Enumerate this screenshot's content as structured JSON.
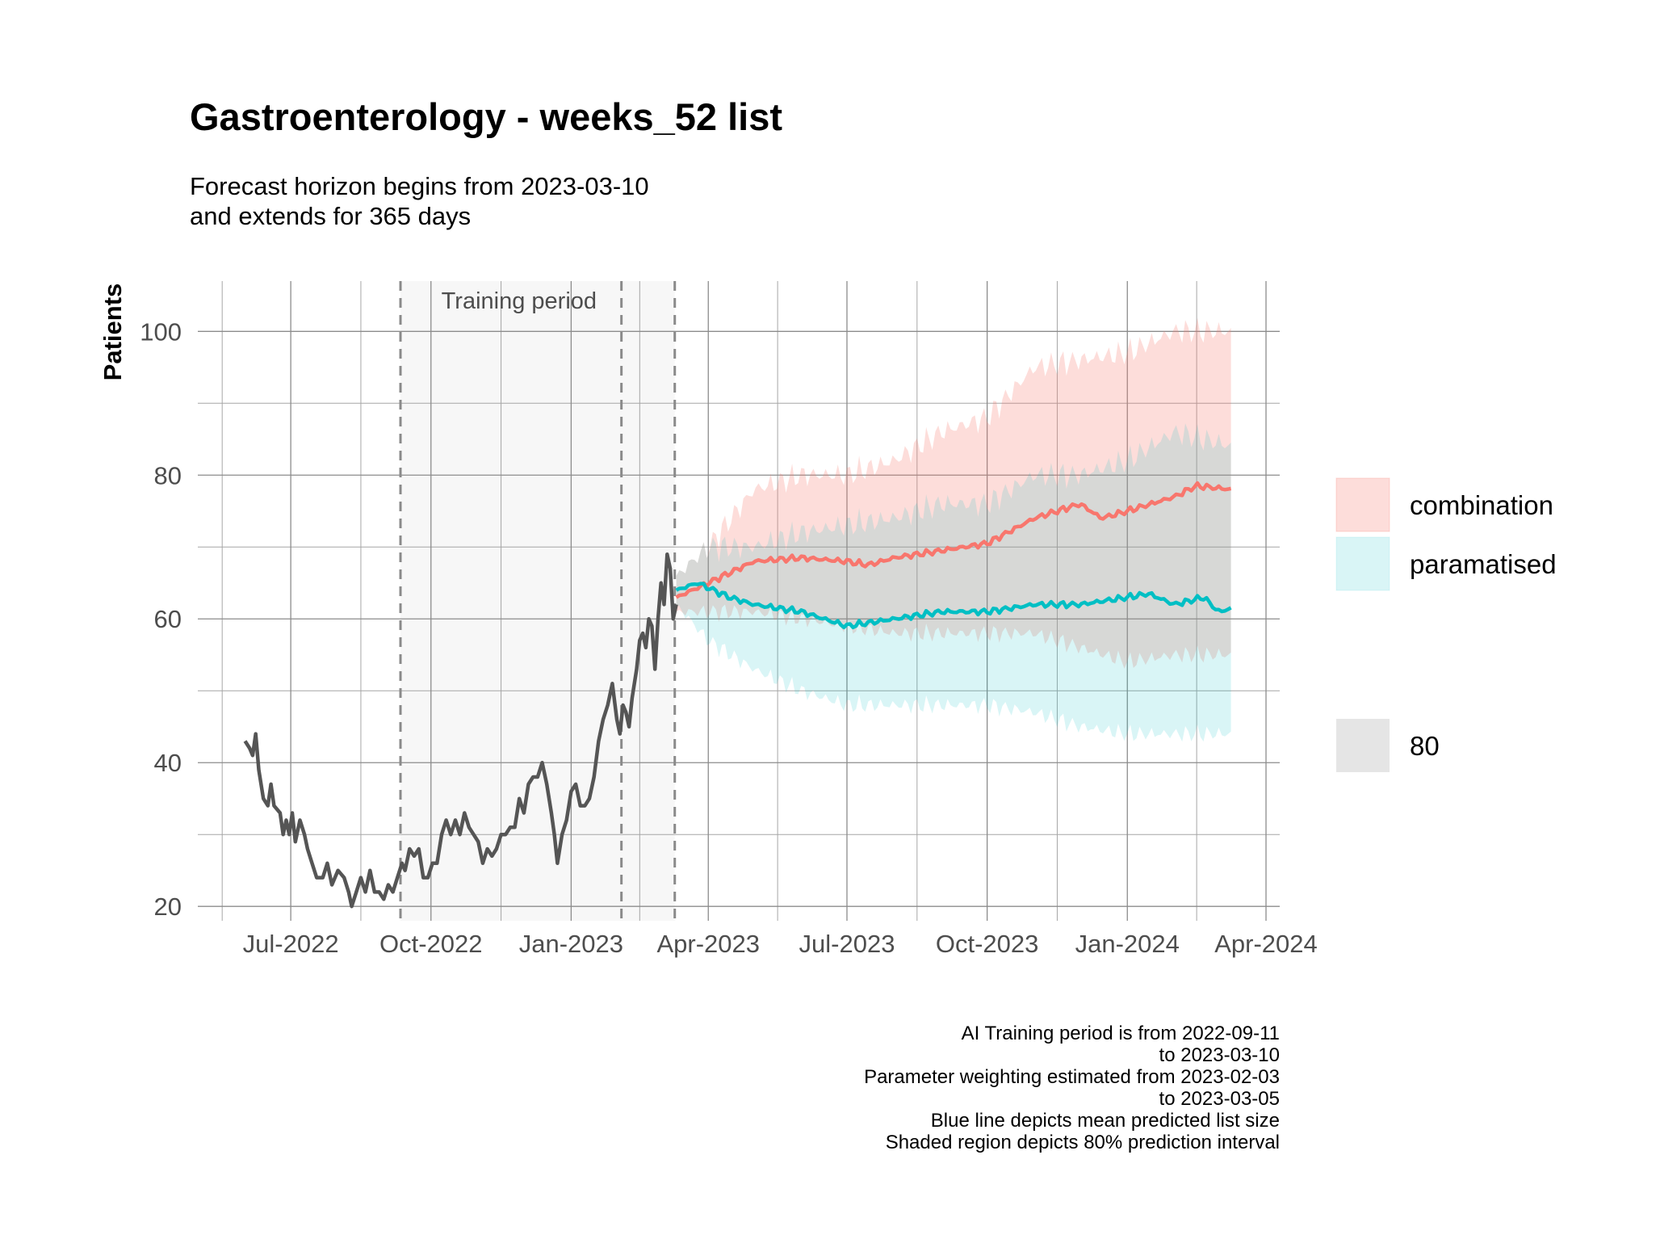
{
  "chart_data": {
    "type": "line",
    "title": "Gastroenterology - weeks_52 list",
    "subtitle_lines": [
      "Forecast horizon begins from 2023-03-10",
      "and extends for 365 days"
    ],
    "ylabel": "Patients",
    "xlabel": "",
    "ylim": [
      18,
      107
    ],
    "y_ticks": [
      20,
      40,
      60,
      80,
      100
    ],
    "x_ticks": [
      {
        "date": "2022-07-01",
        "label": "Jul-2022"
      },
      {
        "date": "2022-10-01",
        "label": "Oct-2022"
      },
      {
        "date": "2023-01-01",
        "label": "Jan-2023"
      },
      {
        "date": "2023-04-01",
        "label": "Apr-2023"
      },
      {
        "date": "2023-07-01",
        "label": "Jul-2023"
      },
      {
        "date": "2023-10-01",
        "label": "Oct-2023"
      },
      {
        "date": "2024-01-01",
        "label": "Jan-2024"
      },
      {
        "date": "2024-04-01",
        "label": "Apr-2024"
      }
    ],
    "xlim": [
      "2022-05-01",
      "2024-04-10"
    ],
    "grid": true,
    "training_period": {
      "start": "2022-09-11",
      "end": "2023-03-10",
      "label": "Training period"
    },
    "vlines_dashed": [
      "2022-09-11",
      "2023-02-03",
      "2023-03-10"
    ],
    "legend": {
      "position": "right",
      "entries": [
        {
          "label": "combination",
          "color": "#f8766d"
        },
        {
          "label": "paramatised",
          "color": "#00bfc4"
        }
      ],
      "level_label": "80",
      "level_color": "#e0e0e0"
    },
    "series": [
      {
        "style": "observed",
        "color": "#555555",
        "points": [
          [
            "2022-06-01",
            43
          ],
          [
            "2022-06-04",
            42
          ],
          [
            "2022-06-06",
            41
          ],
          [
            "2022-06-08",
            44
          ],
          [
            "2022-06-10",
            39
          ],
          [
            "2022-06-13",
            35
          ],
          [
            "2022-06-16",
            34
          ],
          [
            "2022-06-18",
            37
          ],
          [
            "2022-06-20",
            34
          ],
          [
            "2022-06-24",
            33
          ],
          [
            "2022-06-26",
            30
          ],
          [
            "2022-06-28",
            32
          ],
          [
            "2022-06-30",
            30
          ],
          [
            "2022-07-02",
            33
          ],
          [
            "2022-07-04",
            29
          ],
          [
            "2022-07-07",
            32
          ],
          [
            "2022-07-10",
            30
          ],
          [
            "2022-07-12",
            28
          ],
          [
            "2022-07-15",
            26
          ],
          [
            "2022-07-18",
            24
          ],
          [
            "2022-07-22",
            24
          ],
          [
            "2022-07-25",
            26
          ],
          [
            "2022-07-28",
            23
          ],
          [
            "2022-08-01",
            25
          ],
          [
            "2022-08-05",
            24
          ],
          [
            "2022-08-08",
            22
          ],
          [
            "2022-08-10",
            20
          ],
          [
            "2022-08-13",
            22
          ],
          [
            "2022-08-16",
            24
          ],
          [
            "2022-08-19",
            22
          ],
          [
            "2022-08-22",
            25
          ],
          [
            "2022-08-25",
            22
          ],
          [
            "2022-08-28",
            22
          ],
          [
            "2022-08-31",
            21
          ],
          [
            "2022-09-03",
            23
          ],
          [
            "2022-09-06",
            22
          ],
          [
            "2022-09-09",
            24
          ],
          [
            "2022-09-12",
            26
          ],
          [
            "2022-09-14",
            25
          ],
          [
            "2022-09-17",
            28
          ],
          [
            "2022-09-20",
            27
          ],
          [
            "2022-09-23",
            28
          ],
          [
            "2022-09-26",
            24
          ],
          [
            "2022-09-29",
            24
          ],
          [
            "2022-10-02",
            26
          ],
          [
            "2022-10-05",
            26
          ],
          [
            "2022-10-08",
            30
          ],
          [
            "2022-10-11",
            32
          ],
          [
            "2022-10-14",
            30
          ],
          [
            "2022-10-17",
            32
          ],
          [
            "2022-10-20",
            30
          ],
          [
            "2022-10-23",
            33
          ],
          [
            "2022-10-26",
            31
          ],
          [
            "2022-10-29",
            30
          ],
          [
            "2022-11-01",
            29
          ],
          [
            "2022-11-04",
            26
          ],
          [
            "2022-11-07",
            28
          ],
          [
            "2022-11-10",
            27
          ],
          [
            "2022-11-13",
            28
          ],
          [
            "2022-11-16",
            30
          ],
          [
            "2022-11-19",
            30
          ],
          [
            "2022-11-22",
            31
          ],
          [
            "2022-11-25",
            31
          ],
          [
            "2022-11-28",
            35
          ],
          [
            "2022-12-01",
            33
          ],
          [
            "2022-12-04",
            37
          ],
          [
            "2022-12-07",
            38
          ],
          [
            "2022-12-10",
            38
          ],
          [
            "2022-12-13",
            40
          ],
          [
            "2022-12-16",
            37
          ],
          [
            "2022-12-19",
            33
          ],
          [
            "2022-12-21",
            30
          ],
          [
            "2022-12-23",
            26
          ],
          [
            "2022-12-26",
            30
          ],
          [
            "2022-12-29",
            32
          ],
          [
            "2023-01-01",
            36
          ],
          [
            "2023-01-04",
            37
          ],
          [
            "2023-01-07",
            34
          ],
          [
            "2023-01-10",
            34
          ],
          [
            "2023-01-13",
            35
          ],
          [
            "2023-01-16",
            38
          ],
          [
            "2023-01-19",
            43
          ],
          [
            "2023-01-22",
            46
          ],
          [
            "2023-01-25",
            48
          ],
          [
            "2023-01-28",
            51
          ],
          [
            "2023-01-31",
            46
          ],
          [
            "2023-02-02",
            44
          ],
          [
            "2023-02-04",
            48
          ],
          [
            "2023-02-06",
            47
          ],
          [
            "2023-02-08",
            45
          ],
          [
            "2023-02-10",
            49
          ],
          [
            "2023-02-13",
            53
          ],
          [
            "2023-02-15",
            57
          ],
          [
            "2023-02-17",
            58
          ],
          [
            "2023-02-19",
            56
          ],
          [
            "2023-02-21",
            60
          ],
          [
            "2023-02-23",
            59
          ],
          [
            "2023-02-25",
            53
          ],
          [
            "2023-02-27",
            60
          ],
          [
            "2023-03-01",
            65
          ],
          [
            "2023-03-03",
            62
          ],
          [
            "2023-03-05",
            69
          ],
          [
            "2023-03-07",
            67
          ],
          [
            "2023-03-09",
            60
          ],
          [
            "2023-03-11",
            62
          ]
        ]
      },
      {
        "name": "combination",
        "color": "#f8766d",
        "mean": [
          [
            "2023-03-11",
            63
          ],
          [
            "2023-04-01",
            65
          ],
          [
            "2023-05-01",
            68
          ],
          [
            "2023-06-01",
            68.5
          ],
          [
            "2023-07-01",
            68
          ],
          [
            "2023-07-15",
            67.5
          ],
          [
            "2023-08-01",
            68.5
          ],
          [
            "2023-09-01",
            69.5
          ],
          [
            "2023-10-01",
            70.5
          ],
          [
            "2023-11-01",
            74
          ],
          [
            "2023-12-01",
            76
          ],
          [
            "2023-12-15",
            74
          ],
          [
            "2024-01-01",
            75
          ],
          [
            "2024-02-01",
            77
          ],
          [
            "2024-02-15",
            78.5
          ],
          [
            "2024-03-10",
            78
          ]
        ],
        "band_upper": [
          [
            "2023-03-11",
            66
          ],
          [
            "2023-04-01",
            70
          ],
          [
            "2023-05-01",
            78
          ],
          [
            "2023-06-01",
            80
          ],
          [
            "2023-07-01",
            80
          ],
          [
            "2023-08-01",
            82
          ],
          [
            "2023-09-01",
            86
          ],
          [
            "2023-10-01",
            88
          ],
          [
            "2023-11-01",
            95
          ],
          [
            "2023-12-01",
            96
          ],
          [
            "2024-01-01",
            97
          ],
          [
            "2024-02-01",
            100
          ],
          [
            "2024-03-10",
            100
          ]
        ],
        "band_lower": [
          [
            "2023-03-11",
            61
          ],
          [
            "2023-04-01",
            61
          ],
          [
            "2023-05-01",
            61
          ],
          [
            "2023-06-01",
            60
          ],
          [
            "2023-07-01",
            59
          ],
          [
            "2023-08-01",
            58
          ],
          [
            "2023-09-01",
            58
          ],
          [
            "2023-10-01",
            58
          ],
          [
            "2023-11-01",
            58
          ],
          [
            "2023-12-01",
            56
          ],
          [
            "2024-01-01",
            54
          ],
          [
            "2024-02-01",
            55
          ],
          [
            "2024-03-10",
            55
          ]
        ]
      },
      {
        "name": "paramatised",
        "color": "#00bfc4",
        "mean": [
          [
            "2023-03-11",
            64
          ],
          [
            "2023-03-25",
            65
          ],
          [
            "2023-04-15",
            63
          ],
          [
            "2023-05-01",
            62
          ],
          [
            "2023-06-01",
            61
          ],
          [
            "2023-07-01",
            59
          ],
          [
            "2023-08-01",
            60
          ],
          [
            "2023-09-01",
            61
          ],
          [
            "2023-10-01",
            61
          ],
          [
            "2023-11-01",
            62
          ],
          [
            "2023-12-01",
            62
          ],
          [
            "2024-01-01",
            63
          ],
          [
            "2024-01-15",
            63.5
          ],
          [
            "2024-02-01",
            62
          ],
          [
            "2024-02-20",
            63
          ],
          [
            "2024-03-01",
            61
          ],
          [
            "2024-03-10",
            61.5
          ]
        ],
        "band_upper": [
          [
            "2023-03-11",
            66
          ],
          [
            "2023-04-01",
            70
          ],
          [
            "2023-05-01",
            70
          ],
          [
            "2023-06-01",
            72
          ],
          [
            "2023-07-01",
            73
          ],
          [
            "2023-08-01",
            74
          ],
          [
            "2023-09-01",
            76
          ],
          [
            "2023-10-01",
            76
          ],
          [
            "2023-11-01",
            80
          ],
          [
            "2023-12-01",
            80
          ],
          [
            "2024-01-01",
            82
          ],
          [
            "2024-02-01",
            86
          ],
          [
            "2024-03-10",
            84
          ]
        ],
        "band_lower": [
          [
            "2023-03-11",
            62
          ],
          [
            "2023-04-01",
            57
          ],
          [
            "2023-05-01",
            53
          ],
          [
            "2023-06-01",
            50
          ],
          [
            "2023-07-01",
            48
          ],
          [
            "2023-08-01",
            48
          ],
          [
            "2023-09-01",
            48
          ],
          [
            "2023-10-01",
            48
          ],
          [
            "2023-11-01",
            47
          ],
          [
            "2023-12-01",
            45
          ],
          [
            "2024-01-01",
            44
          ],
          [
            "2024-02-01",
            44
          ],
          [
            "2024-03-10",
            44
          ]
        ]
      }
    ],
    "caption_lines": [
      "AI Training period is from 2022-09-11",
      "to 2023-03-10",
      "Parameter weighting estimated from 2023-02-03",
      "to 2023-03-05",
      "Blue line depicts mean predicted list size",
      "Shaded region depicts 80% prediction interval"
    ]
  }
}
